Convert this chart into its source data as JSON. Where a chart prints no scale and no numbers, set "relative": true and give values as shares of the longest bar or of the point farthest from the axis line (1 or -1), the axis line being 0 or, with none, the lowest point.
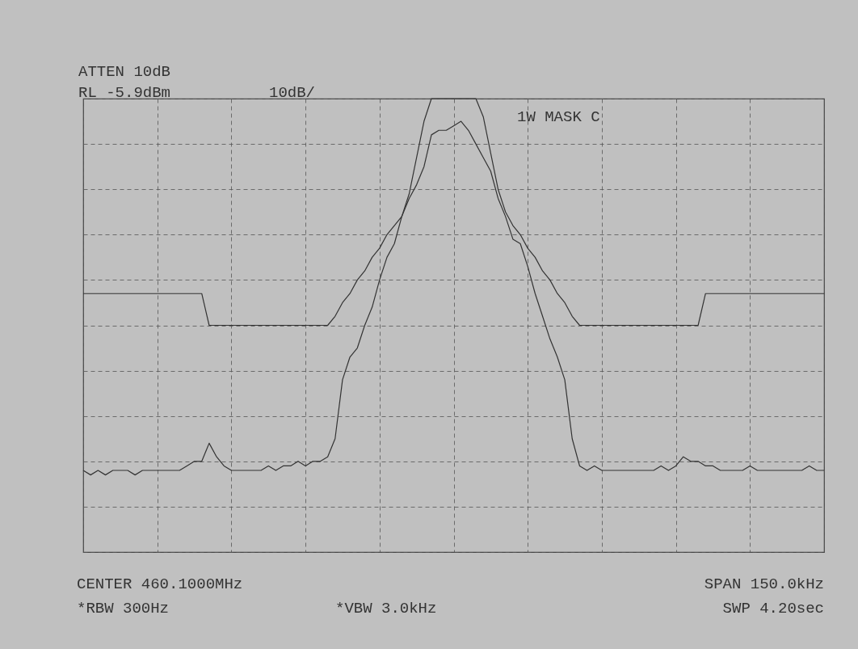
{
  "chart_data": {
    "type": "line",
    "relative": true,
    "grid": true,
    "tick_labels": false,
    "annotations": [
      "ATTEN 10dB",
      "RL -5.9dBm",
      "10dB/",
      "1W MASK C",
      "CENTER 460.1000MHz",
      "SPAN 150.0kHz",
      "*RBW 300Hz",
      "*VBW 3.0kHz",
      "SWP 4.20sec"
    ],
    "categories": [
      null,
      null,
      null,
      null,
      null,
      null,
      null,
      null,
      null,
      null,
      null,
      null,
      null,
      null,
      null,
      null,
      null,
      null,
      null,
      null,
      null,
      null,
      null,
      null,
      null,
      null,
      null,
      null,
      null,
      null,
      null,
      null,
      null,
      null,
      null,
      null,
      null,
      null,
      null,
      null,
      null,
      null,
      null,
      null,
      null,
      null,
      null,
      null,
      null,
      null,
      null,
      null,
      null,
      null,
      null,
      null,
      null,
      null,
      null,
      null,
      null,
      null,
      null,
      null,
      null,
      null,
      null,
      null,
      null,
      null,
      null,
      null,
      null,
      null,
      null,
      null,
      null,
      null,
      null,
      null,
      null,
      null,
      null,
      null,
      null,
      null,
      null,
      null,
      null,
      null,
      null,
      null,
      null,
      null,
      null,
      null,
      null,
      null,
      null,
      null,
      null
    ],
    "series": [
      {
        "color": "#333333",
        "values": [
          0.18,
          0.17,
          0.18,
          0.17,
          0.18,
          0.18,
          0.18,
          0.17,
          0.18,
          0.18,
          0.18,
          0.18,
          0.18,
          0.18,
          0.19,
          0.2,
          0.2,
          0.24,
          0.21,
          0.19,
          0.18,
          0.18,
          0.18,
          0.18,
          0.18,
          0.19,
          0.18,
          0.19,
          0.19,
          0.2,
          0.19,
          0.2,
          0.2,
          0.21,
          0.25,
          0.38,
          0.43,
          0.45,
          0.5,
          0.54,
          0.6,
          0.65,
          0.68,
          0.74,
          0.78,
          0.81,
          0.85,
          0.92,
          0.93,
          0.93,
          0.94,
          0.95,
          0.93,
          0.9,
          0.87,
          0.84,
          0.78,
          0.74,
          0.69,
          0.68,
          0.63,
          0.57,
          0.52,
          0.47,
          0.43,
          0.38,
          0.25,
          0.19,
          0.18,
          0.19,
          0.18,
          0.18,
          0.18,
          0.18,
          0.18,
          0.18,
          0.18,
          0.18,
          0.19,
          0.18,
          0.19,
          0.21,
          0.2,
          0.2,
          0.19,
          0.19,
          0.18,
          0.18,
          0.18,
          0.18,
          0.19,
          0.18,
          0.18,
          0.18,
          0.18,
          0.18,
          0.18,
          0.18,
          0.19,
          0.18,
          0.18
        ]
      },
      {
        "color": "#333333",
        "values": [
          0.57,
          0.57,
          0.57,
          0.57,
          0.57,
          0.57,
          0.57,
          0.57,
          0.57,
          0.57,
          0.57,
          0.57,
          0.57,
          0.57,
          0.57,
          0.57,
          0.57,
          0.5,
          0.5,
          0.5,
          0.5,
          0.5,
          0.5,
          0.5,
          0.5,
          0.5,
          0.5,
          0.5,
          0.5,
          0.5,
          0.5,
          0.5,
          0.5,
          0.5,
          0.52,
          0.55,
          0.57,
          0.6,
          0.62,
          0.65,
          0.67,
          0.7,
          0.72,
          0.74,
          0.79,
          0.87,
          0.95,
          1.0,
          1.0,
          1.0,
          1.0,
          1.0,
          1.0,
          1.0,
          0.96,
          0.88,
          0.8,
          0.75,
          0.72,
          0.7,
          0.67,
          0.65,
          0.62,
          0.6,
          0.57,
          0.55,
          0.52,
          0.5,
          0.5,
          0.5,
          0.5,
          0.5,
          0.5,
          0.5,
          0.5,
          0.5,
          0.5,
          0.5,
          0.5,
          0.5,
          0.5,
          0.5,
          0.5,
          0.5,
          0.57,
          0.57,
          0.57,
          0.57,
          0.57,
          0.57,
          0.57,
          0.57,
          0.57,
          0.57,
          0.57,
          0.57,
          0.57,
          0.57,
          0.57,
          0.57,
          0.57
        ]
      }
    ]
  }
}
